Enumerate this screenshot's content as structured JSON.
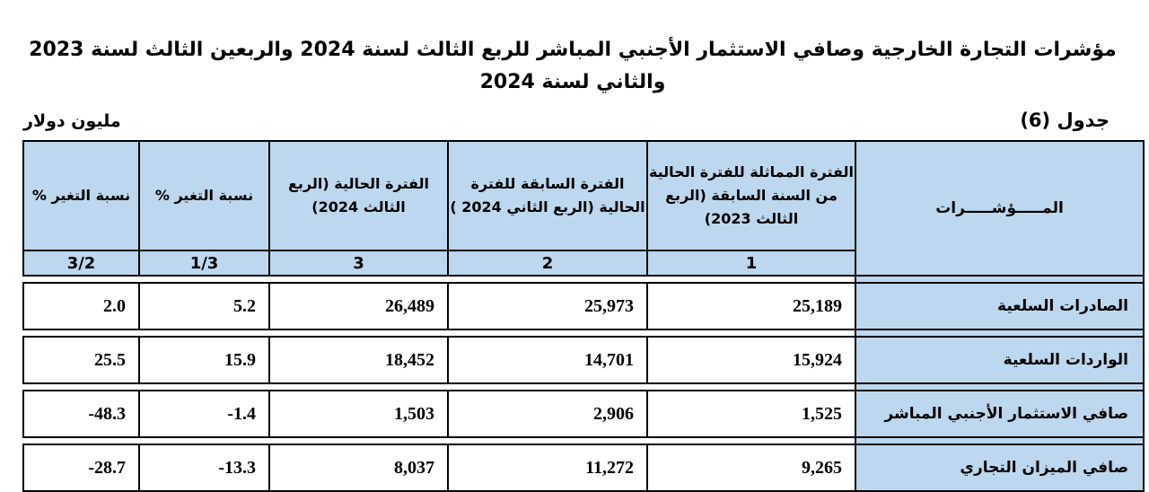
{
  "title": "مؤشرات التجارة الخارجية وصافي الاستثمار الأجنبي المباشر للربع الثالث لسنة 2024 والربعين الثالث لسنة 2023 والثاني لسنة 2024",
  "unit_label": "مليون دولار",
  "table_label": "جدول (6)",
  "header_color": "#bdd7ee",
  "columns": {
    "indicators": "المـــــؤشـــــرات",
    "col1": {
      "label": "الفترة المماثلة للفترة الحالية من السنة السابقة (الربع الثالث 2023)",
      "number": "1"
    },
    "col2": {
      "label": "الفترة السابقة للفترة الحالية (الربع الثاني 2024 )",
      "number": "2"
    },
    "col3": {
      "label": "الفترة الحالية (الربع الثالث 2024)",
      "number": "3"
    },
    "col4": {
      "label": "نسبة التغير %",
      "number": "1/3"
    },
    "col5": {
      "label": "نسبة التغير %",
      "number": "3/2"
    }
  },
  "rows": [
    {
      "label": "الصادرات السلعية",
      "c1": "25,189",
      "c2": "25,973",
      "c3": "26,489",
      "c4": "5.2",
      "c5": "2.0"
    },
    {
      "label": "الواردات السلعية",
      "c1": "15,924",
      "c2": "14,701",
      "c3": "18,452",
      "c4": "15.9",
      "c5": "25.5"
    },
    {
      "label": "صافي الاستثمار الأجنبي المباشر",
      "c1": "1,525",
      "c2": "2,906",
      "c3": "1,503",
      "c4": "-1.4",
      "c5": "-48.3"
    },
    {
      "label": "صافي الميزان التجاري",
      "c1": "9,265",
      "c2": "11,272",
      "c3": "8,037",
      "c4": "-13.3",
      "c5": "-28.7"
    }
  ]
}
